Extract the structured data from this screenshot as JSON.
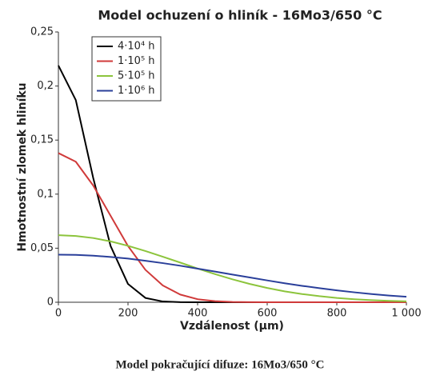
{
  "chart_data": {
    "type": "line",
    "title": "Model ochuzení o hliník - 16Mo3/650 °C",
    "x_label": "Vzdálenost (µm)",
    "y_label": "Hmotnostní zlomek hliníku",
    "caption": "Model pokračující difuze: 16Mo3/650 °C",
    "x": [
      0,
      50,
      100,
      150,
      200,
      250,
      300,
      350,
      400,
      450,
      500,
      550,
      600,
      650,
      700,
      750,
      800,
      850,
      900,
      950,
      1000
    ],
    "series": [
      {
        "name": "4·10⁴ h",
        "color": "#000000",
        "values": [
          0.219,
          0.187,
          0.115,
          0.052,
          0.0169,
          0.004,
          0.0007,
          0.0001,
          0,
          0,
          0,
          0,
          0,
          0,
          0,
          0,
          0,
          0,
          0,
          0,
          0
        ]
      },
      {
        "name": "1·10⁵ h",
        "color": "#d03a3a",
        "values": [
          0.138,
          0.13,
          0.108,
          0.08,
          0.052,
          0.03,
          0.0155,
          0.0071,
          0.0028,
          0.001,
          0.0003,
          0.0001,
          0,
          0,
          0,
          0,
          0,
          0,
          0,
          0,
          0
        ]
      },
      {
        "name": "5·10⁵ h",
        "color": "#8cc43c",
        "values": [
          0.062,
          0.0613,
          0.0594,
          0.0563,
          0.0522,
          0.0474,
          0.0421,
          0.0367,
          0.0312,
          0.026,
          0.0212,
          0.0169,
          0.0132,
          0.0101,
          0.0076,
          0.0056,
          0.004,
          0.0028,
          0.0019,
          0.0013,
          0.0008
        ]
      },
      {
        "name": "1·10⁶ h",
        "color": "#2a3f9a",
        "values": [
          0.044,
          0.0438,
          0.0431,
          0.0419,
          0.0404,
          0.0384,
          0.0362,
          0.0338,
          0.0311,
          0.0284,
          0.0256,
          0.0229,
          0.0202,
          0.0176,
          0.0152,
          0.013,
          0.011,
          0.0092,
          0.0076,
          0.0062,
          0.0051
        ]
      }
    ],
    "xlim": [
      0,
      1000
    ],
    "xticks": [
      0,
      200,
      400,
      600,
      800,
      {
        "value": 1000,
        "label": "1 000"
      }
    ],
    "ylim": [
      0,
      0.25
    ],
    "yticks": [
      0,
      {
        "value": 0.05,
        "label": "0,05"
      },
      {
        "value": 0.1,
        "label": "0,1"
      },
      {
        "value": 0.15,
        "label": "0,15"
      },
      {
        "value": 0.2,
        "label": "0,2"
      },
      {
        "value": 0.25,
        "label": "0,25"
      }
    ],
    "legend": "upper left"
  }
}
